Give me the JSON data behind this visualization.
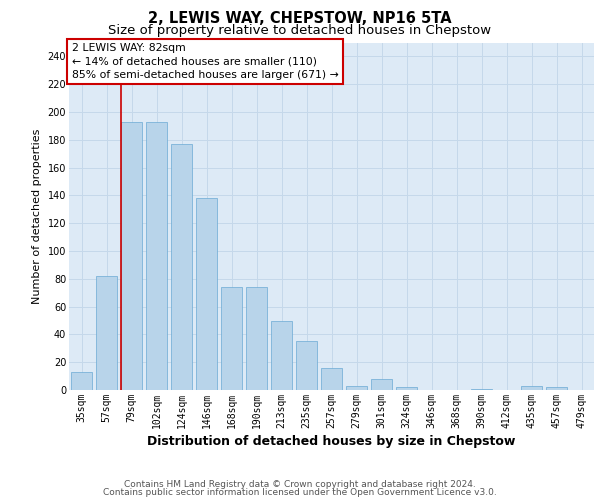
{
  "title1": "2, LEWIS WAY, CHEPSTOW, NP16 5TA",
  "title2": "Size of property relative to detached houses in Chepstow",
  "xlabel": "Distribution of detached houses by size in Chepstow",
  "ylabel": "Number of detached properties",
  "categories": [
    "35sqm",
    "57sqm",
    "79sqm",
    "102sqm",
    "124sqm",
    "146sqm",
    "168sqm",
    "190sqm",
    "213sqm",
    "235sqm",
    "257sqm",
    "279sqm",
    "301sqm",
    "324sqm",
    "346sqm",
    "368sqm",
    "390sqm",
    "412sqm",
    "435sqm",
    "457sqm",
    "479sqm"
  ],
  "values": [
    13,
    82,
    193,
    193,
    177,
    138,
    74,
    74,
    50,
    35,
    16,
    3,
    8,
    2,
    0,
    0,
    1,
    0,
    3,
    2,
    0
  ],
  "bar_color": "#b8d4ea",
  "bar_edge_color": "#6aaad4",
  "grid_color": "#c5d8ea",
  "background_color": "#ddeaf6",
  "vline_color": "#cc0000",
  "vline_pos": 1.58,
  "annotation_line1": "2 LEWIS WAY: 82sqm",
  "annotation_line2": "← 14% of detached houses are smaller (110)",
  "annotation_line3": "85% of semi-detached houses are larger (671) →",
  "annotation_box_edgecolor": "#cc0000",
  "ylim_max": 250,
  "yticks": [
    0,
    20,
    40,
    60,
    80,
    100,
    120,
    140,
    160,
    180,
    200,
    220,
    240
  ],
  "footer1": "Contains HM Land Registry data © Crown copyright and database right 2024.",
  "footer2": "Contains public sector information licensed under the Open Government Licence v3.0.",
  "title1_fontsize": 10.5,
  "title2_fontsize": 9.5,
  "ylabel_fontsize": 8,
  "xlabel_fontsize": 9,
  "tick_fontsize": 7,
  "annotation_fontsize": 7.8,
  "footer_fontsize": 6.5
}
